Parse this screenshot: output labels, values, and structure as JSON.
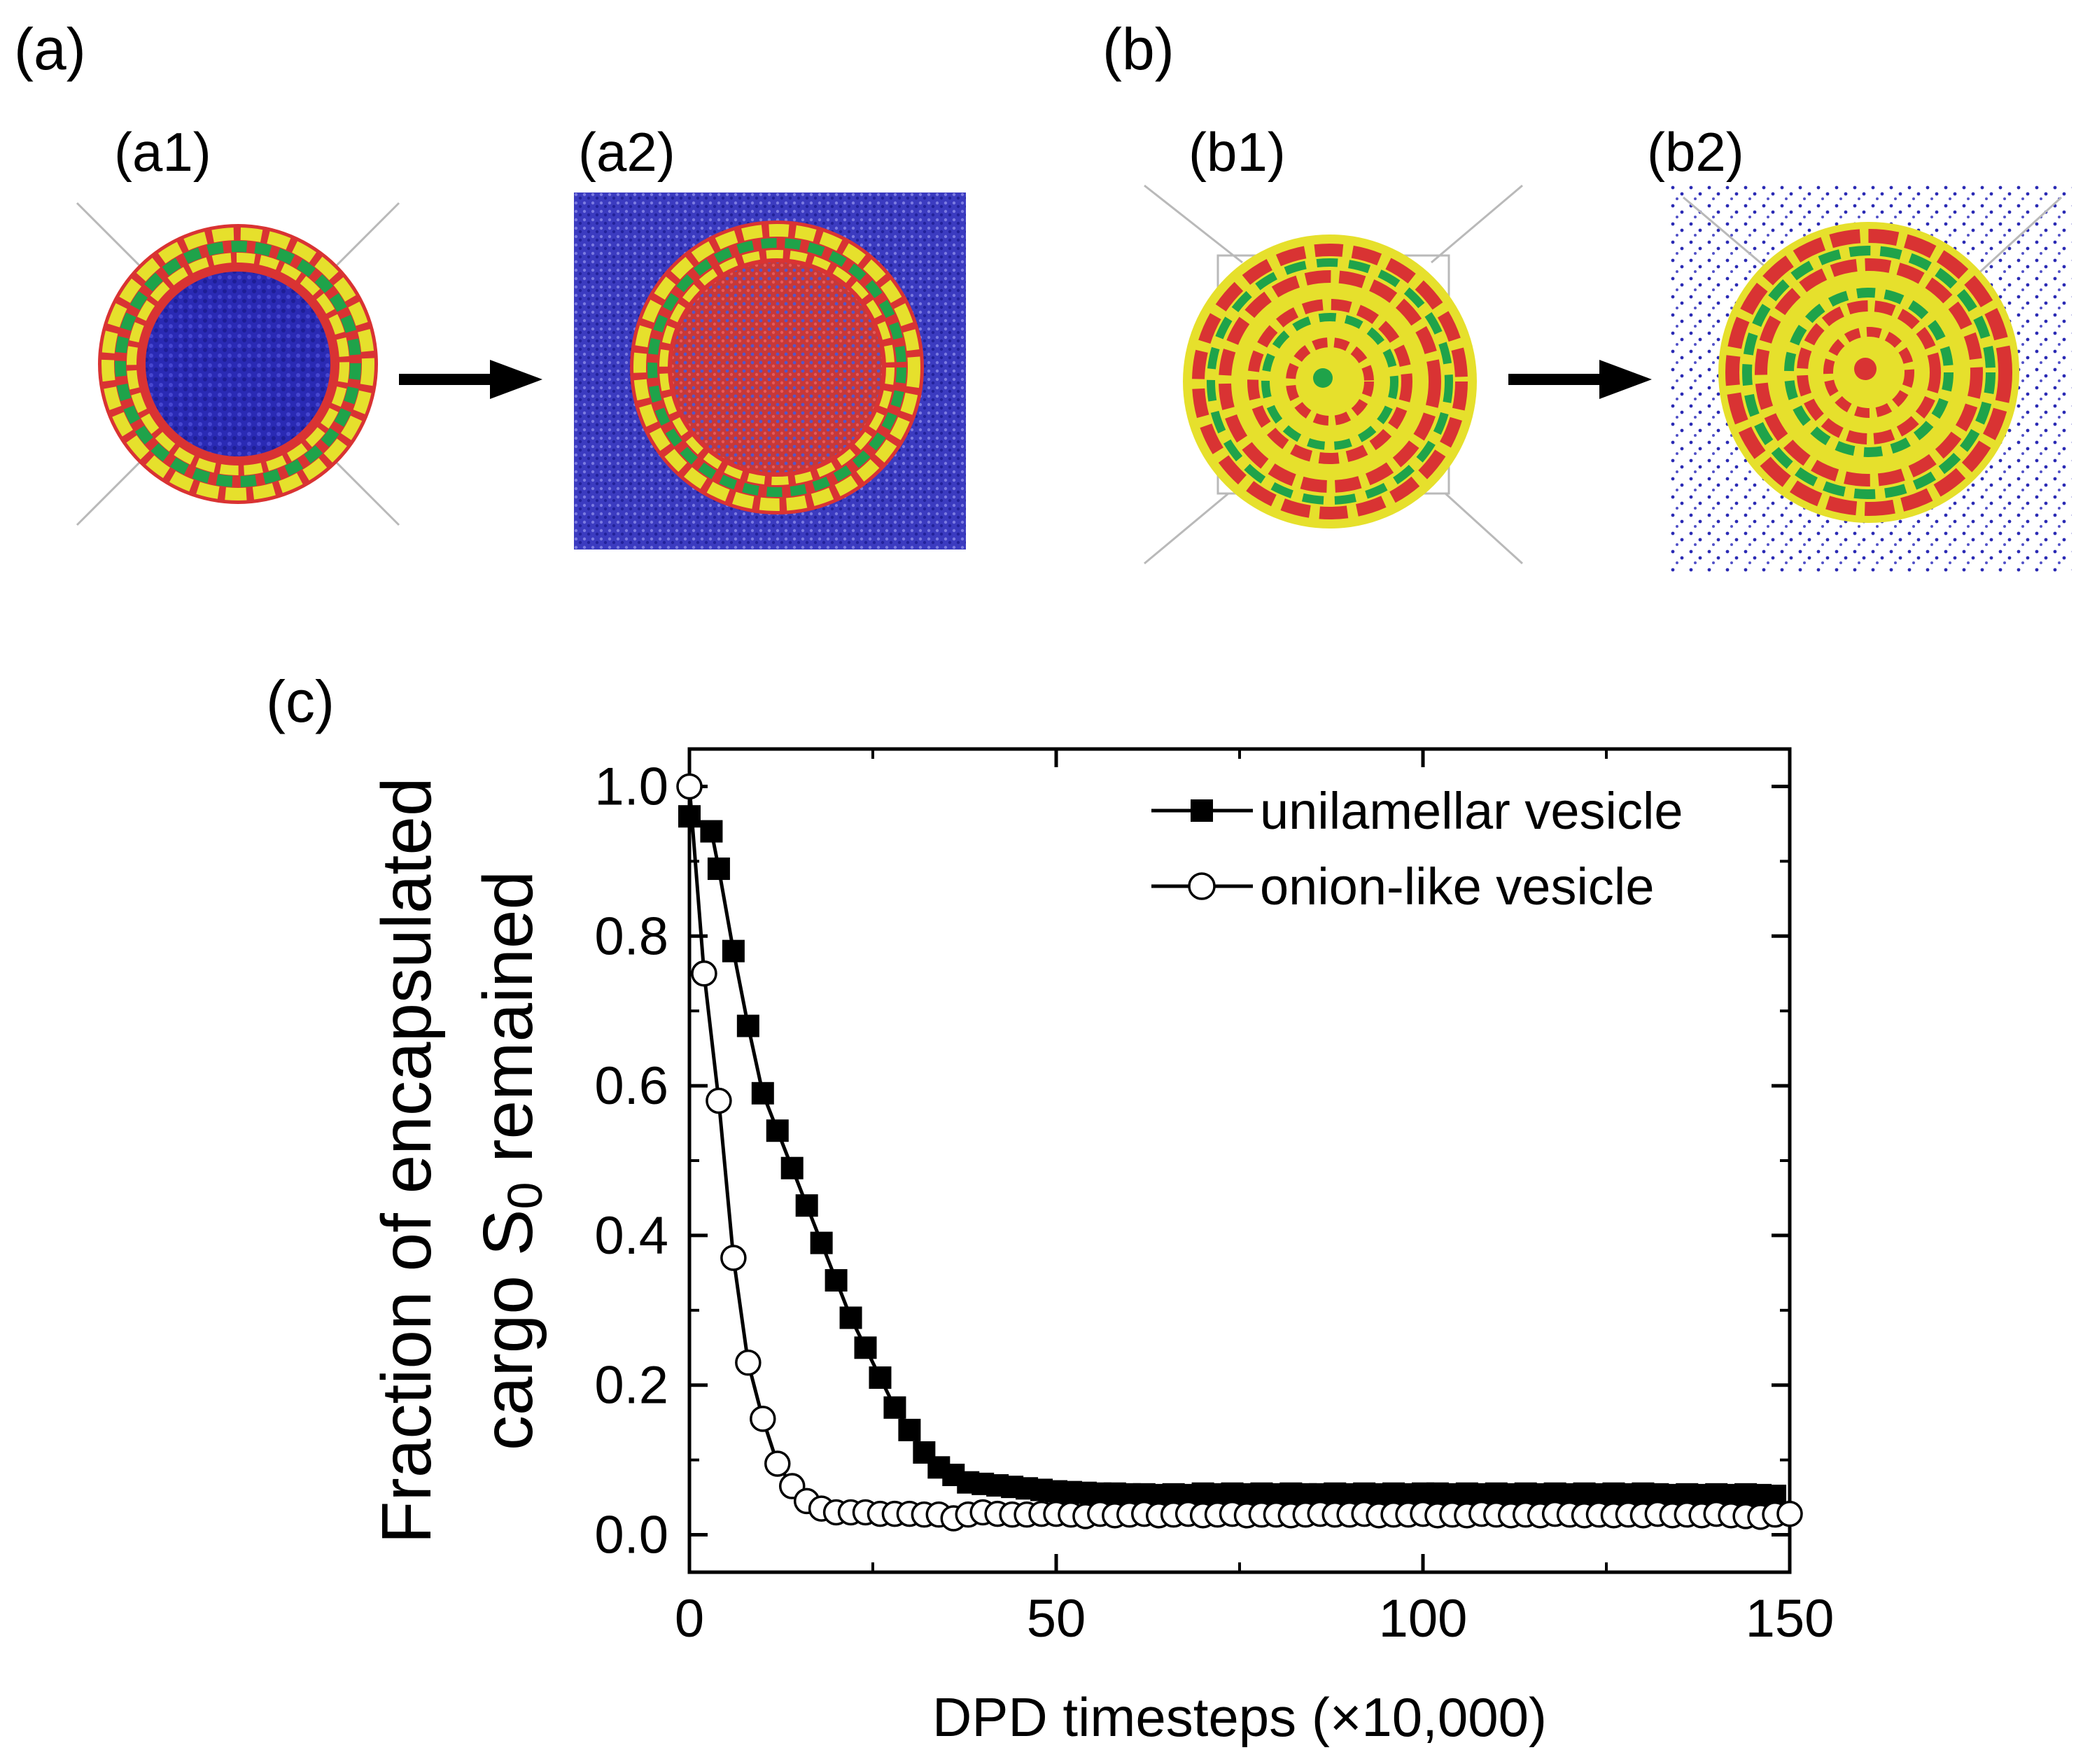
{
  "panels": {
    "a": {
      "label": "(a)",
      "a1": "(a1)",
      "a2": "(a2)"
    },
    "b": {
      "label": "(b)",
      "b1": "(b1)",
      "b2": "(b2)"
    },
    "c": {
      "label": "(c)"
    }
  },
  "colors": {
    "solvent": "#2a2ab4",
    "red": "#e03030",
    "yellow": "#e6e02c",
    "green": "#1fa34a",
    "box_line": "#b9b9b9"
  },
  "chart_data": {
    "type": "line",
    "xlabel": "DPD timesteps (×10,000)",
    "ylabel_line1": "Fraction of encapsulated",
    "ylabel_line2_prefix": "cargo S",
    "ylabel_line2_sub": "0",
    "ylabel_line2_suffix": " remained",
    "xlim": [
      0,
      150
    ],
    "ylim": [
      -0.05,
      1.05
    ],
    "xticks": [
      0,
      50,
      100,
      150
    ],
    "yticks": [
      0.0,
      0.2,
      0.4,
      0.6,
      0.8,
      1.0
    ],
    "xtick_labels": [
      "0",
      "50",
      "100",
      "150"
    ],
    "ytick_labels": [
      "0.0",
      "0.2",
      "0.4",
      "0.6",
      "0.8",
      "1.0"
    ],
    "legend": {
      "position": "top-right",
      "entries": [
        "unilamellar vesicle",
        "onion-like vesicle"
      ]
    },
    "series": [
      {
        "name": "unilamellar vesicle",
        "marker": "filled-square",
        "x": [
          0,
          3,
          4,
          6,
          8,
          10,
          12,
          14,
          16,
          18,
          20,
          22,
          24,
          26,
          28,
          30,
          32,
          34,
          36,
          38,
          40,
          42,
          44,
          46,
          48,
          50,
          52,
          54,
          56,
          58,
          60,
          62,
          64,
          66,
          68,
          70,
          72,
          74,
          76,
          78,
          80,
          82,
          84,
          86,
          88,
          90,
          92,
          94,
          96,
          98,
          100,
          102,
          104,
          106,
          108,
          110,
          112,
          114,
          116,
          118,
          120,
          122,
          124,
          126,
          128,
          130,
          132,
          134,
          136,
          138,
          140,
          142,
          144,
          146,
          148
        ],
        "y": [
          0.96,
          0.94,
          0.89,
          0.78,
          0.68,
          0.59,
          0.54,
          0.49,
          0.44,
          0.39,
          0.34,
          0.29,
          0.25,
          0.21,
          0.17,
          0.14,
          0.11,
          0.09,
          0.08,
          0.07,
          0.068,
          0.066,
          0.064,
          0.062,
          0.06,
          0.058,
          0.057,
          0.056,
          0.055,
          0.055,
          0.054,
          0.054,
          0.053,
          0.054,
          0.053,
          0.055,
          0.054,
          0.055,
          0.054,
          0.055,
          0.054,
          0.055,
          0.054,
          0.054,
          0.055,
          0.054,
          0.055,
          0.054,
          0.055,
          0.054,
          0.055,
          0.055,
          0.054,
          0.055,
          0.054,
          0.055,
          0.054,
          0.055,
          0.054,
          0.055,
          0.054,
          0.055,
          0.054,
          0.055,
          0.054,
          0.055,
          0.054,
          0.053,
          0.054,
          0.053,
          0.054,
          0.053,
          0.054,
          0.053,
          0.052
        ]
      },
      {
        "name": "onion-like vesicle",
        "marker": "open-circle",
        "x": [
          0,
          2,
          4,
          6,
          8,
          10,
          12,
          14,
          16,
          18,
          20,
          22,
          24,
          26,
          28,
          30,
          32,
          34,
          36,
          38,
          40,
          42,
          44,
          46,
          48,
          50,
          52,
          54,
          56,
          58,
          60,
          62,
          64,
          66,
          68,
          70,
          72,
          74,
          76,
          78,
          80,
          82,
          84,
          86,
          88,
          90,
          92,
          94,
          96,
          98,
          100,
          102,
          104,
          106,
          108,
          110,
          112,
          114,
          116,
          118,
          120,
          122,
          124,
          126,
          128,
          130,
          132,
          134,
          136,
          138,
          140,
          142,
          144,
          146,
          148,
          150
        ],
        "y": [
          1.0,
          0.75,
          0.58,
          0.37,
          0.23,
          0.155,
          0.095,
          0.065,
          0.045,
          0.035,
          0.03,
          0.03,
          0.03,
          0.028,
          0.028,
          0.028,
          0.027,
          0.027,
          0.022,
          0.027,
          0.03,
          0.028,
          0.027,
          0.027,
          0.028,
          0.028,
          0.027,
          0.025,
          0.028,
          0.026,
          0.027,
          0.028,
          0.026,
          0.027,
          0.028,
          0.026,
          0.027,
          0.028,
          0.026,
          0.027,
          0.027,
          0.026,
          0.027,
          0.028,
          0.027,
          0.027,
          0.028,
          0.026,
          0.027,
          0.027,
          0.028,
          0.026,
          0.027,
          0.026,
          0.028,
          0.027,
          0.026,
          0.027,
          0.026,
          0.028,
          0.027,
          0.026,
          0.027,
          0.026,
          0.027,
          0.026,
          0.028,
          0.026,
          0.027,
          0.026,
          0.028,
          0.026,
          0.025,
          0.024,
          0.027,
          0.028
        ]
      }
    ]
  }
}
